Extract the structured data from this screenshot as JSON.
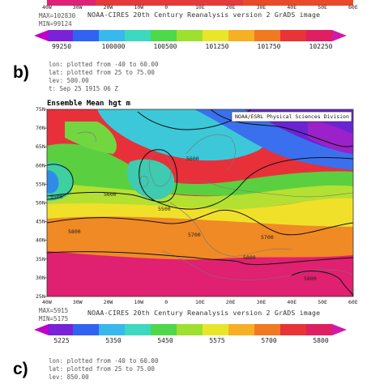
{
  "panel_a": {
    "x_ticks": [
      "40W",
      "30W",
      "20W",
      "10W",
      "0",
      "10E",
      "20E",
      "30E",
      "40E",
      "50E",
      "60E"
    ],
    "max": "MAX=102830",
    "min": "MIN=99124",
    "credit": "NOAA-CIRES 20th Century Reanalysis version 2 GrADS image",
    "colorbar_ticks": [
      "99250",
      "100000",
      "100500",
      "101250",
      "101750",
      "102250"
    ]
  },
  "panel_b": {
    "label": "b)",
    "lon": "lon: plotted from -40 to 60.00",
    "lat": "lat: plotted from 25 to 75.00",
    "lev": "lev: 500.00",
    "time": "t: Sep 25 1915 06 Z",
    "title": "Ensemble Mean hgt m",
    "source": "NOAA/ESRL Physical Sciences Division",
    "y_ticks": [
      "75N",
      "70N",
      "65N",
      "60N",
      "55N",
      "50N",
      "45N",
      "40N",
      "35N",
      "30N",
      "25N"
    ],
    "x_ticks": [
      "40W",
      "30W",
      "20W",
      "10W",
      "0",
      "10E",
      "20E",
      "30E",
      "40E",
      "50E",
      "60E"
    ],
    "contour_labels": [
      "5600",
      "5500",
      "5600",
      "5500",
      "5800",
      "5700",
      "5700",
      "5800",
      "5800"
    ],
    "max": "MAX=5915",
    "min": "MIN=5175",
    "credit": "NOAA-CIRES 20th Century Reanalysis version 2 GrADS image",
    "colorbar_ticks": [
      "5225",
      "5350",
      "5450",
      "5575",
      "5700",
      "5800"
    ]
  },
  "panel_c": {
    "label": "c)",
    "lon": "lon: plotted from -40 to 60.00",
    "lat": "lat: plotted from 25 to 75.00",
    "lev": "lev: 850.00"
  },
  "colors": {
    "magenta": "#c000c8",
    "purple": "#6a1fd0",
    "blue": "#2e6cf0",
    "cyan": "#38c8e8",
    "teal": "#40d8b0",
    "green": "#5ad23c",
    "lime": "#b0e030",
    "yellow": "#f2e628",
    "orange": "#f4a020",
    "red": "#e8283c",
    "pink": "#e0207a"
  }
}
